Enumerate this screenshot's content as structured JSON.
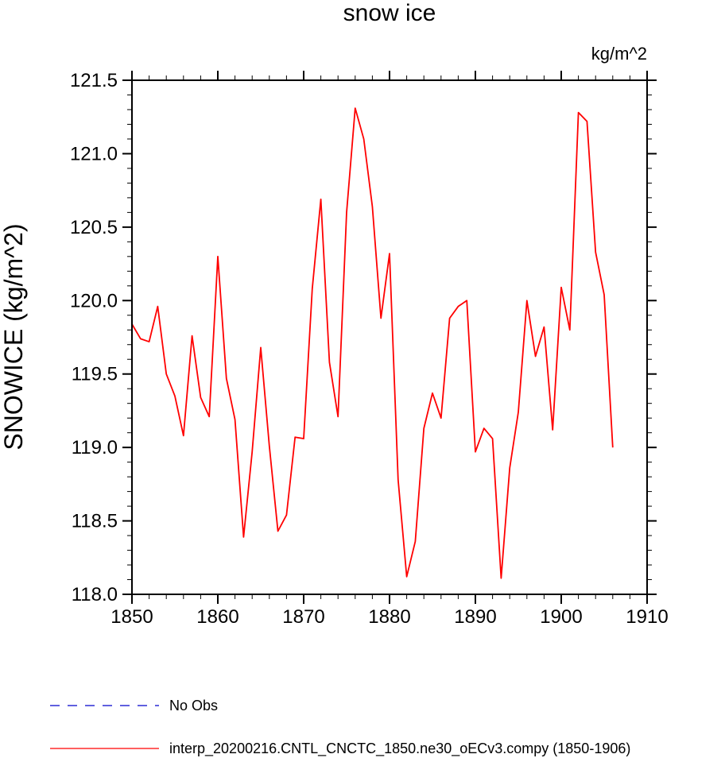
{
  "chart_data": {
    "type": "line",
    "title": "snow ice",
    "units": "kg/m^2",
    "xlabel": "",
    "ylabel": "SNOWICE  (kg/m^2)",
    "xlim": [
      1850,
      1910
    ],
    "ylim": [
      118.0,
      121.5
    ],
    "x_ticks": [
      1850,
      1860,
      1870,
      1880,
      1890,
      1900,
      1910
    ],
    "y_ticks": [
      118.0,
      118.5,
      119.0,
      119.5,
      120.0,
      120.5,
      121.0,
      121.5
    ],
    "y_tick_labels": [
      "118.0",
      "118.5",
      "119.0",
      "119.5",
      "120.0",
      "120.5",
      "121.0",
      "121.5"
    ],
    "x_minor_step": 2,
    "y_minor_step": 0.1,
    "grid": false,
    "legend_position": "bottom-left",
    "series": [
      {
        "name": "interp_20200216.CNTL_CNCTC_1850.ne30_oECv3.compy (1850-1906)",
        "color": "#ff0000",
        "style": "solid",
        "x": [
          1850,
          1851,
          1852,
          1853,
          1854,
          1855,
          1856,
          1857,
          1858,
          1859,
          1860,
          1861,
          1862,
          1863,
          1864,
          1865,
          1866,
          1867,
          1868,
          1869,
          1870,
          1871,
          1872,
          1873,
          1874,
          1875,
          1876,
          1877,
          1878,
          1879,
          1880,
          1881,
          1882,
          1883,
          1884,
          1885,
          1886,
          1887,
          1888,
          1889,
          1890,
          1891,
          1892,
          1893,
          1894,
          1895,
          1896,
          1897,
          1898,
          1899,
          1900,
          1901,
          1902,
          1903,
          1904,
          1905,
          1906
        ],
        "values": [
          119.84,
          119.74,
          119.72,
          119.96,
          119.5,
          119.35,
          119.08,
          119.76,
          119.34,
          119.21,
          120.3,
          119.47,
          119.19,
          118.39,
          118.97,
          119.68,
          119.01,
          118.43,
          118.54,
          119.07,
          119.06,
          120.08,
          120.69,
          119.58,
          119.21,
          120.6,
          121.31,
          121.1,
          120.64,
          119.88,
          120.32,
          118.78,
          118.12,
          118.36,
          119.13,
          119.37,
          119.2,
          119.88,
          119.96,
          120.0,
          118.97,
          119.13,
          119.06,
          118.11,
          118.86,
          119.24,
          120.0,
          119.62,
          119.82,
          119.12,
          120.09,
          119.8,
          121.28,
          121.22,
          120.33,
          120.04,
          119.0
        ]
      }
    ],
    "legend": [
      {
        "label": "No Obs",
        "color": "#0000cc",
        "style": "dashed"
      },
      {
        "label": "interp_20200216.CNTL_CNCTC_1850.ne30_oECv3.compy (1850-1906)",
        "color": "#ff0000",
        "style": "solid"
      }
    ]
  }
}
